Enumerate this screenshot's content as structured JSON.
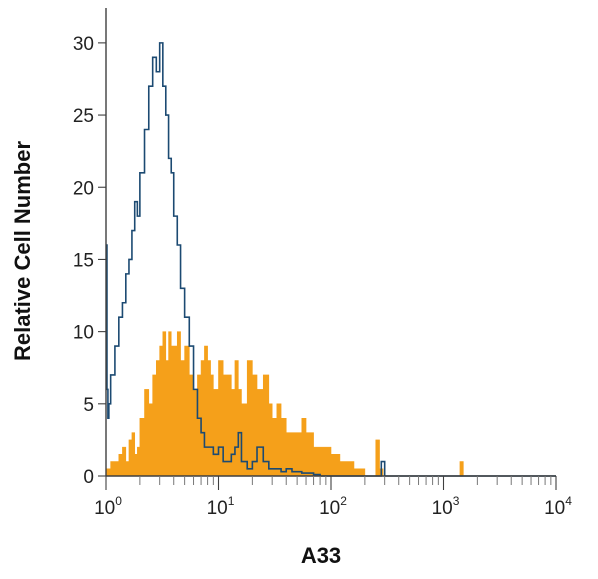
{
  "chart_data": {
    "type": "histogram",
    "title": "",
    "xlabel": "A33",
    "ylabel": "Relative Cell Number",
    "x_scale": "log",
    "xlim": [
      1,
      10000
    ],
    "ylim": [
      0,
      32
    ],
    "x_ticks": [
      {
        "base": "10",
        "exp": "0",
        "value": 1
      },
      {
        "base": "10",
        "exp": "1",
        "value": 10
      },
      {
        "base": "10",
        "exp": "2",
        "value": 100
      },
      {
        "base": "10",
        "exp": "3",
        "value": 1000
      },
      {
        "base": "10",
        "exp": "4",
        "value": 10000
      }
    ],
    "y_ticks": [
      {
        "label": "0",
        "value": 0
      },
      {
        "label": "5",
        "value": 5
      },
      {
        "label": "10",
        "value": 10
      },
      {
        "label": "15",
        "value": 15
      },
      {
        "label": "20",
        "value": 20
      },
      {
        "label": "25",
        "value": 25
      },
      {
        "label": "30",
        "value": 30
      }
    ],
    "grid": false,
    "series": [
      {
        "style": "filled",
        "color": "#f5a01a",
        "x": [
          1.0,
          1.1,
          1.2,
          1.3,
          1.4,
          1.5,
          1.6,
          1.7,
          1.8,
          1.9,
          2.0,
          2.2,
          2.4,
          2.6,
          2.8,
          3.0,
          3.2,
          3.4,
          3.6,
          3.8,
          4.0,
          4.3,
          4.6,
          5.0,
          5.5,
          6.0,
          6.5,
          7.0,
          7.5,
          8.0,
          8.5,
          9.0,
          10,
          11,
          12,
          13,
          14,
          15,
          16,
          18,
          20,
          22,
          25,
          28,
          30,
          33,
          36,
          40,
          45,
          50,
          55,
          60,
          70,
          80,
          90,
          100,
          120,
          140,
          160,
          180,
          200,
          250,
          270,
          290,
          320,
          400,
          600,
          1000,
          1400,
          1500,
          1600,
          2000,
          3000,
          5000,
          10000
        ],
        "y": [
          0.5,
          1,
          1,
          1.5,
          2,
          1,
          2.5,
          3,
          1.5,
          2,
          4,
          6,
          5,
          7,
          8,
          9,
          10,
          8,
          10,
          9,
          9,
          10,
          8,
          9,
          7,
          6,
          7,
          8,
          9,
          8,
          7,
          6,
          8,
          7,
          7,
          6,
          8,
          6,
          5,
          8,
          7,
          6,
          7,
          5,
          4,
          5,
          4,
          3,
          3,
          3,
          4,
          3,
          2,
          2,
          2,
          1.5,
          1,
          1,
          0.5,
          0.5,
          0,
          2.5,
          0.5,
          0,
          0,
          0,
          0,
          0,
          1,
          0,
          0,
          0,
          0,
          0,
          0
        ]
      },
      {
        "style": "outline",
        "color": "#1c4a72",
        "x": [
          1.0,
          1.02,
          1.04,
          1.06,
          1.1,
          1.2,
          1.3,
          1.4,
          1.5,
          1.6,
          1.7,
          1.8,
          1.9,
          2.0,
          2.2,
          2.4,
          2.6,
          2.8,
          3.0,
          3.2,
          3.4,
          3.6,
          3.8,
          4.0,
          4.3,
          4.6,
          5.0,
          5.5,
          6.0,
          6.5,
          7.0,
          7.5,
          8.0,
          9.0,
          10,
          11,
          12,
          13,
          14,
          15,
          16,
          18,
          20,
          22,
          25,
          28,
          30,
          33,
          36,
          40,
          45,
          50,
          55,
          60,
          70,
          80,
          90,
          100,
          120,
          150,
          200,
          250,
          280,
          300,
          400,
          1000,
          5000,
          10000
        ],
        "y": [
          16,
          6,
          4,
          5,
          7,
          9,
          11,
          12,
          14,
          15,
          17,
          19,
          18,
          21,
          24,
          27,
          29,
          28,
          30,
          27,
          25,
          22,
          21,
          18,
          16,
          13,
          11,
          9,
          6,
          4,
          3,
          2,
          2,
          1.5,
          2,
          1,
          1,
          1.5,
          2,
          3,
          1,
          0.5,
          1,
          2,
          1,
          0.5,
          0.5,
          0.5,
          0.3,
          0.5,
          0.3,
          0.3,
          0.2,
          0.2,
          0.1,
          0,
          0,
          0,
          0,
          0,
          0,
          0,
          1,
          0,
          0,
          0,
          0,
          0
        ]
      }
    ]
  }
}
